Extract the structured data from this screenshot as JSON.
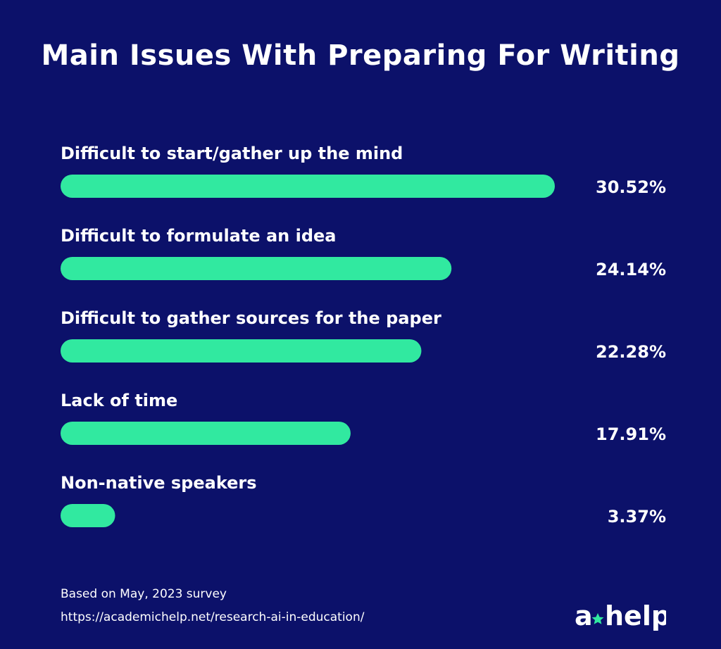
{
  "chart_data": {
    "type": "bar",
    "orientation": "horizontal",
    "title": "Main Issues With Preparing For Writing",
    "categories": [
      "Difficult to start/gather up the mind",
      "Difficult to formulate an idea",
      "Difficult to gather sources for the paper",
      "Lack of time",
      "Non-native speakers"
    ],
    "values": [
      30.52,
      24.14,
      22.28,
      17.91,
      3.37
    ],
    "value_labels": [
      "30.52%",
      "24.14%",
      "22.28%",
      "17.91%",
      "3.37%"
    ],
    "unit": "%",
    "legend": "none",
    "grid": false,
    "bar_color": "#31e9a0",
    "background_color": "#0c116a"
  },
  "footer": {
    "survey": "Based on May, 2023 survey",
    "url": "https://academichelp.net/research-ai-in-education/"
  },
  "logo": {
    "text_left": "a",
    "text_right": "help",
    "icon": "star-icon",
    "accent_color": "#31e9a0"
  }
}
